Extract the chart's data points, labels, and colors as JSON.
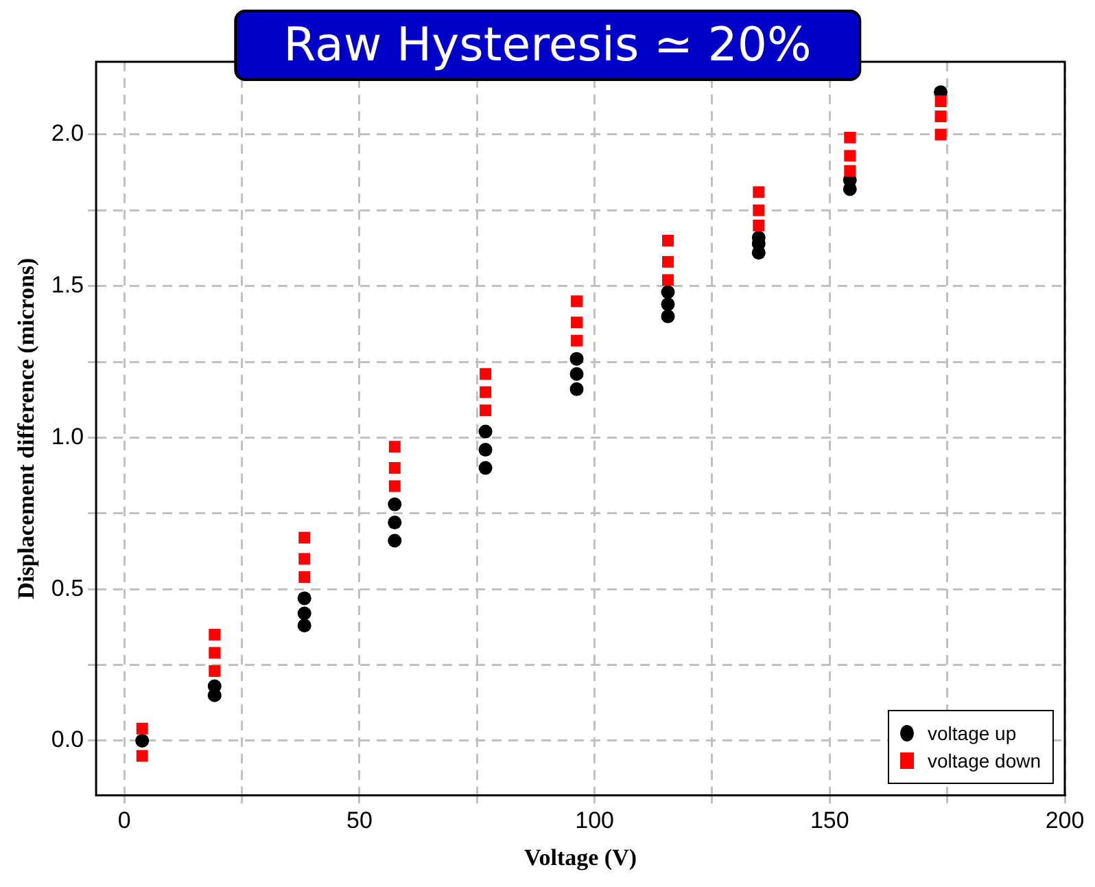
{
  "chart_data": {
    "type": "scatter",
    "title": "Raw Hysteresis ≃ 20%",
    "xlabel": "Voltage (V)",
    "ylabel": "Displacement difference (microns)",
    "xlim": [
      -6,
      200
    ],
    "xticks": [
      0,
      {
        "value": 25,
        "label": null
      },
      50,
      {
        "value": 75,
        "label": null
      },
      100,
      {
        "value": 125,
        "label": null
      },
      150,
      {
        "value": 175,
        "label": null
      },
      200
    ],
    "ylim": [
      -0.18,
      2.24
    ],
    "yticks": [
      {
        "value": 0,
        "label": "0.0"
      },
      {
        "value": 0.25,
        "label": null
      },
      {
        "value": 0.5,
        "label": "0.5"
      },
      {
        "value": 0.75,
        "label": null
      },
      {
        "value": 1,
        "label": "1.0"
      },
      {
        "value": 1.25,
        "label": null
      },
      {
        "value": 1.5,
        "label": "1.5"
      },
      {
        "value": 1.75,
        "label": null
      },
      {
        "value": 2,
        "label": "2.0"
      }
    ],
    "grid": true,
    "legend": "bottom right",
    "series": [
      {
        "name": "voltage up",
        "color": "#000000",
        "marker": "circle",
        "x": [
          3.8,
          19.2,
          19.2,
          38.3,
          38.3,
          38.3,
          57.5,
          57.5,
          57.5,
          76.8,
          76.8,
          76.8,
          96.2,
          96.2,
          96.2,
          115.6,
          115.6,
          115.6,
          134.9,
          134.9,
          134.9,
          154.3,
          154.3,
          173.6
        ],
        "values": [
          0.0,
          0.15,
          0.18,
          0.38,
          0.42,
          0.47,
          0.66,
          0.72,
          0.78,
          0.9,
          0.96,
          1.02,
          1.16,
          1.21,
          1.26,
          1.4,
          1.44,
          1.48,
          1.61,
          1.64,
          1.66,
          1.82,
          1.85,
          2.14
        ]
      },
      {
        "name": "voltage down",
        "color": "#ff0000",
        "marker": "square",
        "x": [
          3.8,
          3.8,
          19.2,
          19.2,
          19.2,
          38.3,
          38.3,
          38.3,
          57.5,
          57.5,
          57.5,
          76.8,
          76.8,
          76.8,
          96.2,
          96.2,
          96.2,
          115.6,
          115.6,
          115.6,
          134.9,
          134.9,
          134.9,
          154.3,
          154.3,
          154.3,
          173.6,
          173.6,
          173.6
        ],
        "values": [
          -0.05,
          0.04,
          0.23,
          0.29,
          0.35,
          0.54,
          0.6,
          0.67,
          0.84,
          0.9,
          0.97,
          1.09,
          1.15,
          1.21,
          1.32,
          1.38,
          1.45,
          1.52,
          1.58,
          1.65,
          1.7,
          1.75,
          1.81,
          1.88,
          1.93,
          1.99,
          2.0,
          2.06,
          2.11
        ]
      }
    ]
  }
}
